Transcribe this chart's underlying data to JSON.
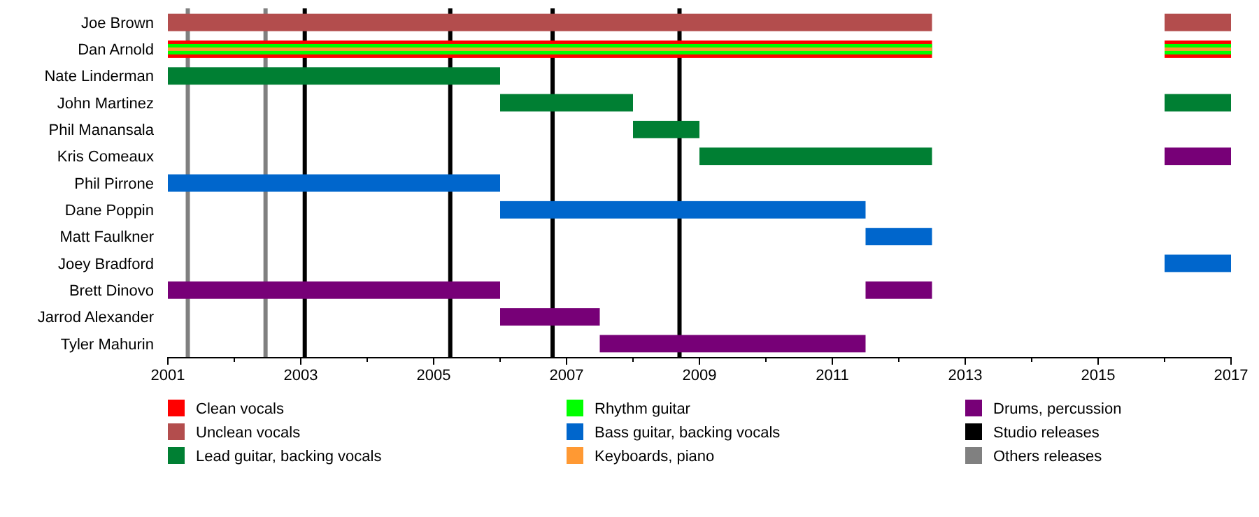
{
  "chart_data": {
    "type": "bar",
    "orientation": "horizontal",
    "categories": [
      "Joe Brown",
      "Dan Arnold",
      "Nate Linderman",
      "John Martinez",
      "Phil Manansala",
      "Kris Comeaux",
      "Phil Pirrone",
      "Dane Poppin",
      "Matt Faulkner",
      "Joey Bradford",
      "Brett Dinovo",
      "Jarrod Alexander",
      "Tyler Mahurin"
    ],
    "series": [
      {
        "name": "Clean vocals",
        "color": "#ff0000",
        "base": [
          null,
          2001,
          null,
          null,
          null,
          null,
          null,
          null,
          null,
          null,
          null,
          null,
          null
        ],
        "values": [
          null,
          11.5,
          null,
          null,
          null,
          null,
          null,
          null,
          null,
          null,
          null,
          null,
          null
        ]
      },
      {
        "name": "Unclean vocals",
        "color": "#b34d4d",
        "base": [
          2001,
          null,
          null,
          null,
          null,
          null,
          null,
          null,
          null,
          null,
          null,
          null,
          null
        ],
        "values": [
          11.5,
          null,
          null,
          null,
          null,
          null,
          null,
          null,
          null,
          null,
          null,
          null,
          null
        ]
      },
      {
        "name": "Lead guitar, backing vocals",
        "color": "#007f33",
        "base": [
          null,
          null,
          2001,
          2006,
          2008,
          2009,
          null,
          null,
          null,
          null,
          null,
          null,
          null
        ],
        "values": [
          null,
          null,
          5,
          2,
          1,
          3.5,
          null,
          null,
          null,
          null,
          null,
          null,
          null
        ]
      },
      {
        "name": "Rhythm guitar",
        "color": "#00ff00",
        "base": [
          null,
          2001,
          null,
          null,
          null,
          null,
          null,
          null,
          null,
          null,
          null,
          null,
          null
        ],
        "values": [
          null,
          11.5,
          null,
          null,
          null,
          null,
          null,
          null,
          null,
          null,
          null,
          null,
          null
        ]
      },
      {
        "name": "Bass guitar, backing vocals",
        "color": "#0066cc",
        "base": [
          null,
          null,
          null,
          null,
          null,
          null,
          2001,
          2006,
          2011.5,
          2016,
          null,
          null,
          null
        ],
        "values": [
          null,
          null,
          null,
          null,
          null,
          null,
          5,
          5.5,
          1,
          1,
          null,
          null,
          null
        ]
      },
      {
        "name": "Keyboards, piano",
        "color": "#ff9933",
        "base": [
          null,
          2001,
          null,
          null,
          null,
          null,
          null,
          null,
          null,
          null,
          null,
          null,
          null
        ],
        "values": [
          null,
          11.5,
          null,
          null,
          null,
          null,
          null,
          null,
          null,
          null,
          null,
          null,
          null
        ]
      },
      {
        "name": "Drums, percussion",
        "color": "#770077",
        "base": [
          null,
          null,
          null,
          null,
          null,
          2016,
          null,
          null,
          null,
          null,
          2001,
          2006,
          2007.5
        ],
        "values": [
          null,
          null,
          null,
          null,
          null,
          1,
          null,
          null,
          null,
          null,
          5,
          1.5,
          4
        ]
      },
      {
        "color": "#ff0000",
        "base": [
          null,
          2016,
          null,
          null,
          null,
          null,
          null,
          null,
          null,
          null,
          null,
          null,
          null
        ],
        "values": [
          null,
          1,
          null,
          null,
          null,
          null,
          null,
          null,
          null,
          null,
          null,
          null,
          null
        ]
      },
      {
        "color": "#b34d4d",
        "base": [
          2016,
          null,
          null,
          null,
          null,
          null,
          null,
          null,
          null,
          null,
          null,
          null,
          null
        ],
        "values": [
          1,
          null,
          null,
          null,
          null,
          null,
          null,
          null,
          null,
          null,
          null,
          null,
          null
        ]
      },
      {
        "color": "#007f33",
        "base": [
          null,
          null,
          null,
          2016,
          null,
          null,
          null,
          null,
          null,
          null,
          null,
          null,
          null
        ],
        "values": [
          null,
          null,
          null,
          1,
          null,
          null,
          null,
          null,
          null,
          null,
          null,
          null,
          null
        ]
      },
      {
        "color": "#00ff00",
        "base": [
          null,
          2016,
          null,
          null,
          null,
          null,
          null,
          null,
          null,
          null,
          null,
          null,
          null
        ],
        "values": [
          null,
          1,
          null,
          null,
          null,
          null,
          null,
          null,
          null,
          null,
          null,
          null,
          null
        ]
      },
      {
        "color": "#ff9933",
        "base": [
          null,
          2016,
          null,
          null,
          null,
          null,
          null,
          null,
          null,
          null,
          null,
          null,
          null
        ],
        "values": [
          null,
          1,
          null,
          null,
          null,
          null,
          null,
          null,
          null,
          null,
          null,
          null,
          null
        ]
      },
      {
        "color": "#770077",
        "base": [
          null,
          null,
          null,
          null,
          null,
          null,
          null,
          null,
          null,
          null,
          2011.5,
          null,
          null
        ],
        "values": [
          null,
          null,
          null,
          null,
          null,
          null,
          null,
          null,
          null,
          null,
          1,
          null,
          null
        ]
      }
    ],
    "xlim": [
      2001,
      2017
    ],
    "xticks": [
      2001,
      {
        "value": 2002,
        "label": null
      },
      2003,
      {
        "value": 2004,
        "label": null
      },
      2005,
      {
        "value": 2006,
        "label": null
      },
      2007,
      {
        "value": 2008,
        "label": null
      },
      2009,
      {
        "value": 2010,
        "label": null
      },
      2011,
      {
        "value": 2012,
        "label": null
      },
      2013,
      {
        "value": 2014,
        "label": null
      },
      2015,
      {
        "value": 2016,
        "label": null
      },
      2017
    ],
    "ref_lines": [
      {
        "axis": "x",
        "value": 2003.06,
        "label": "Studio releases",
        "color": "#000000"
      },
      {
        "axis": "x",
        "value": 2005.25,
        "color": "#000000"
      },
      {
        "axis": "x",
        "value": 2006.79,
        "color": "#000000"
      },
      {
        "axis": "x",
        "value": 2008.7,
        "color": "#000000"
      },
      {
        "axis": "x",
        "value": 2001.3,
        "label": "Others releases",
        "color": "#808080"
      },
      {
        "axis": "x",
        "value": 2002.47,
        "color": "#808080"
      }
    ],
    "legend": "bottom",
    "grid": false
  }
}
